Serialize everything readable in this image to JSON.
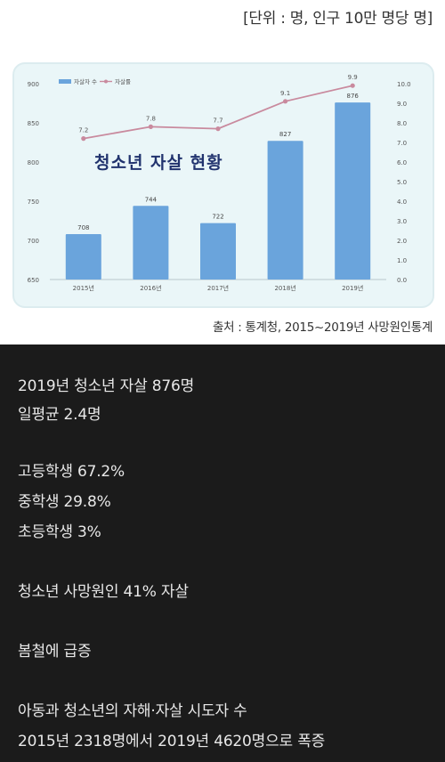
{
  "header": {
    "unit": "[단위 : 명, 인구 10만 명당 명]",
    "source": "출처 : 통계청, 2015~2019년 사망원인통계"
  },
  "chart_data": {
    "type": "bar",
    "title": "청소년 자살 현황",
    "categories": [
      "2015년",
      "2016년",
      "2017년",
      "2018년",
      "2019년"
    ],
    "series": [
      {
        "name": "자살자 수",
        "type": "bar",
        "axis": "left",
        "values": [
          708,
          744,
          722,
          827,
          876
        ],
        "color": "#6aa4dc"
      },
      {
        "name": "자살률",
        "type": "line",
        "axis": "right",
        "values": [
          7.2,
          7.8,
          7.7,
          9.1,
          9.9
        ],
        "color": "#c98a9e"
      }
    ],
    "ylim_left": [
      650,
      900
    ],
    "yticks_left": [
      "650",
      "700",
      "750",
      "800",
      "850",
      "900"
    ],
    "ylim_right": [
      0,
      10
    ],
    "yticks_right": [
      "0.0",
      "1.0",
      "2.0",
      "3.0",
      "4.0",
      "5.0",
      "6.0",
      "7.0",
      "8.0",
      "9.0",
      "10.0"
    ],
    "legend": "top-left",
    "grid": false
  },
  "text_lines": [
    "2019년 청소년 자살 876명",
    "일평균 2.4명",
    "고등학생 67.2%",
    "중학생 29.8%",
    "초등학생 3%",
    "청소년 사망원인 41% 자살",
    "봄철에 급증",
    "아동과 청소년의 자해·자살 시도자 수",
    "2015년 2318명에서 2019년 4620명으로 폭증"
  ]
}
